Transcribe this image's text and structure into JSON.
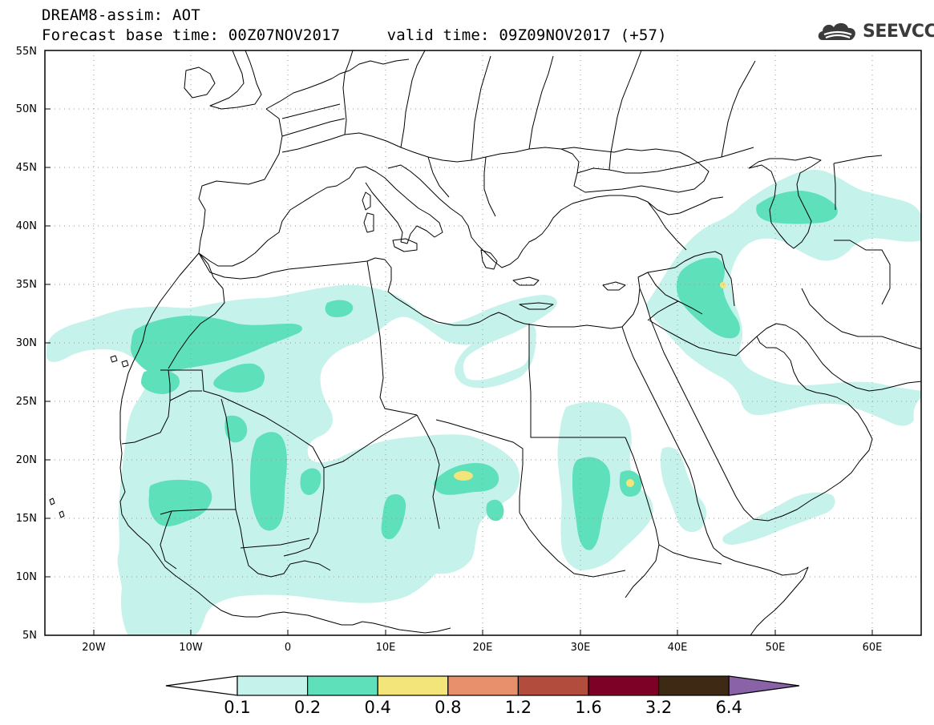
{
  "header": {
    "line1": "DREAM8-assim: AOT",
    "base_label": "Forecast base time: 00Z07NOV2017",
    "valid_label": "valid time: 09Z09NOV2017 (+57)"
  },
  "logo": {
    "icon": "cloud-logo-icon",
    "text": "SEEVCCC"
  },
  "map": {
    "lon_range": [
      -25,
      65
    ],
    "lat_range": [
      5,
      55
    ],
    "lat_ticks": [
      "5N",
      "10N",
      "15N",
      "20N",
      "25N",
      "30N",
      "35N",
      "40N",
      "45N",
      "50N",
      "55N"
    ],
    "lon_ticks": [
      "20W",
      "10W",
      "0",
      "10E",
      "20E",
      "30E",
      "40E",
      "50E",
      "60E"
    ],
    "grid": "dotted",
    "colors": {
      "land_border": "#000000",
      "grid": "#9a9a9a"
    }
  },
  "colorbar": {
    "labels": [
      "0.1",
      "0.2",
      "0.4",
      "0.8",
      "1.2",
      "1.6",
      "3.2",
      "6.4"
    ],
    "colors": [
      "#ffffff",
      "#c5f2ea",
      "#5ee0bb",
      "#f4e57a",
      "#e8906c",
      "#b24d3e",
      "#7d0026",
      "#3e2a14",
      "#8a62a8"
    ]
  },
  "chart_data": {
    "type": "heatmap",
    "title": "DREAM8-assim: AOT",
    "variable": "AOT",
    "levels": [
      0.1,
      0.2,
      0.4,
      0.8,
      1.2,
      1.6,
      3.2,
      6.4
    ],
    "regions": [
      {
        "level": 0.1,
        "area": "NW Africa, Sahara edges, Sahel, Sudan, Middle East, Caspian region"
      },
      {
        "level": 0.2,
        "area": "Morocco/Algeria, Mali, Niger, Chad, Sudan, Iraq, Caspian"
      },
      {
        "level": 0.4,
        "area": "Chad ~18E 18N, Ethiopia ~35E 17N, Iraq ~43E 35N"
      }
    ]
  }
}
